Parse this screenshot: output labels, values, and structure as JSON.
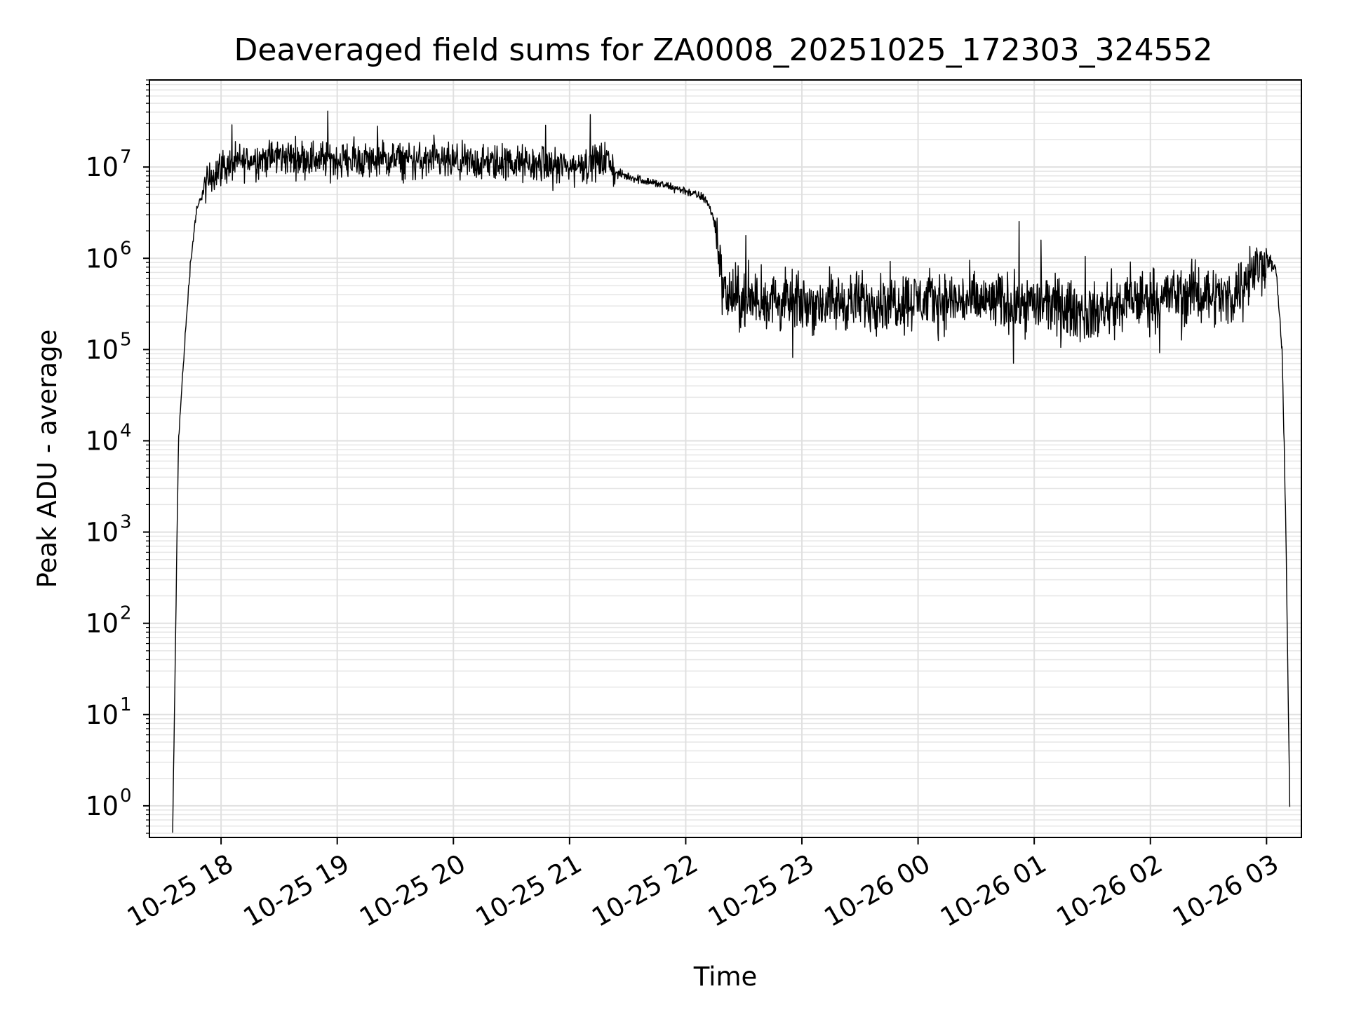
{
  "chart_data": {
    "type": "line",
    "title": "Deaveraged field sums for ZA0008_20251025_172303_324552",
    "xlabel": "Time",
    "ylabel": "Peak ADU - average",
    "x_range": [
      "10-25 17:23",
      "10-26 03:18"
    ],
    "y_scale": "log",
    "ylim": [
      0.45,
      90000000
    ],
    "grid": true,
    "x_ticks": [
      "10-25 18",
      "10-25 19",
      "10-25 20",
      "10-25 21",
      "10-25 22",
      "10-25 23",
      "10-26 00",
      "10-26 01",
      "10-26 02",
      "10-26 03"
    ],
    "y_ticks": [
      {
        "base": "10",
        "exp": "0"
      },
      {
        "base": "10",
        "exp": "1"
      },
      {
        "base": "10",
        "exp": "2"
      },
      {
        "base": "10",
        "exp": "3"
      },
      {
        "base": "10",
        "exp": "4"
      },
      {
        "base": "10",
        "exp": "5"
      },
      {
        "base": "10",
        "exp": "6"
      },
      {
        "base": "10",
        "exp": "7"
      }
    ],
    "series": [
      {
        "color": "#000000",
        "x": [
          "10-25 17:35",
          "10-25 17:38",
          "10-25 17:41",
          "10-25 17:44",
          "10-25 17:47",
          "10-25 17:50",
          "10-25 17:55",
          "10-25 18:00",
          "10-25 18:15",
          "10-25 18:30",
          "10-25 19:00",
          "10-25 19:30",
          "10-25 20:00",
          "10-25 20:30",
          "10-25 21:00",
          "10-25 21:20",
          "10-25 21:24",
          "10-25 21:40",
          "10-25 22:00",
          "10-25 22:10",
          "10-25 22:14",
          "10-25 22:17",
          "10-25 22:20",
          "10-25 22:30",
          "10-25 23:00",
          "10-26 00:00",
          "10-26 01:00",
          "10-26 01:30",
          "10-26 02:00",
          "10-26 02:30",
          "10-26 02:40",
          "10-26 02:50",
          "10-26 03:00",
          "10-26 03:05",
          "10-26 03:08",
          "10-26 03:10",
          "10-26 03:12"
        ],
        "y": [
          0.5,
          10000,
          100000,
          800000,
          3000000,
          5000000,
          8000000,
          10000000,
          12000000,
          13000000,
          12000000,
          12000000,
          11000000,
          11000000,
          10000000,
          12000000,
          8500000,
          7000000,
          5500000,
          4500000,
          3000000,
          1200000,
          400000,
          350000,
          320000,
          350000,
          320000,
          250000,
          380000,
          420000,
          350000,
          600000,
          1000000,
          700000,
          100000,
          1000,
          1
        ]
      }
    ]
  }
}
